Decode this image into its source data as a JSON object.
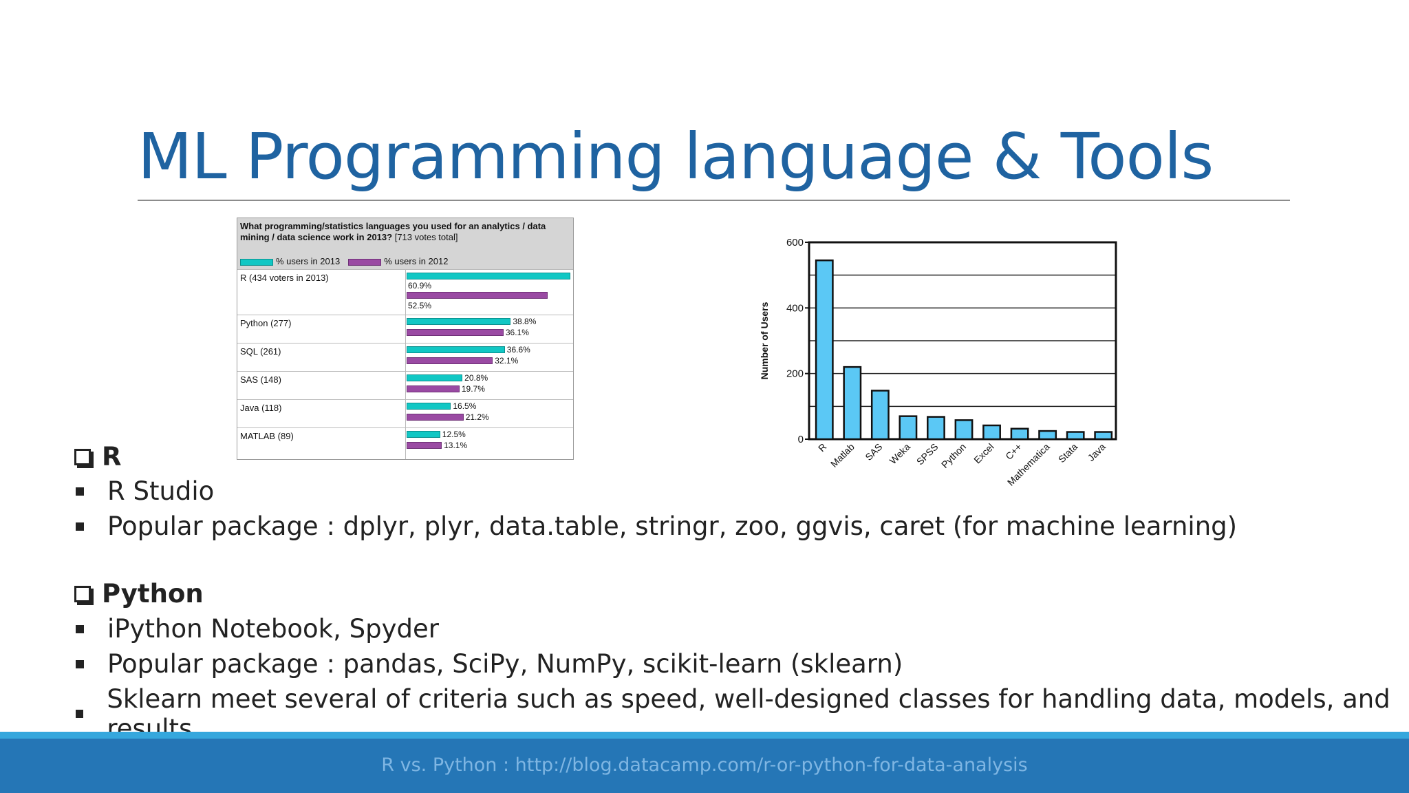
{
  "title": "ML Programming language & Tools",
  "table_chart": {
    "question": "What programming/statistics languages you used for an analytics / data mining / data science work in 2013?",
    "votes_note": "[713 votes total]",
    "legend_2013": "% users in 2013",
    "legend_2012": "% users in 2012",
    "colors": {
      "y2013": "#11c7c4",
      "y2012": "#9a4aa3"
    },
    "rows": [
      {
        "label": "R (434 voters in 2013)",
        "v2013": 60.9,
        "v2012": 52.5,
        "t2013": "60.9%",
        "t2012": "52.5%"
      },
      {
        "label": "Python (277)",
        "v2013": 38.8,
        "v2012": 36.1,
        "t2013": "38.8%",
        "t2012": "36.1%"
      },
      {
        "label": "SQL (261)",
        "v2013": 36.6,
        "v2012": 32.1,
        "t2013": "36.6%",
        "t2012": "32.1%"
      },
      {
        "label": "SAS (148)",
        "v2013": 20.8,
        "v2012": 19.7,
        "t2013": "20.8%",
        "t2012": "19.7%"
      },
      {
        "label": "Java (118)",
        "v2013": 16.5,
        "v2012": 21.2,
        "t2013": "16.5%",
        "t2012": "21.2%"
      },
      {
        "label": "MATLAB (89)",
        "v2013": 12.5,
        "v2012": 13.1,
        "t2013": "12.5%",
        "t2012": "13.1%"
      }
    ]
  },
  "chart_data": {
    "type": "bar",
    "categories": [
      "R",
      "Matlab",
      "SAS",
      "Weka",
      "SPSS",
      "Python",
      "Excel",
      "C++",
      "Mathematica",
      "Stata",
      "Java"
    ],
    "values": [
      545,
      220,
      148,
      70,
      68,
      58,
      42,
      32,
      25,
      22,
      22
    ],
    "xlabel": "",
    "ylabel": "Number of Users",
    "ylim": [
      0,
      600
    ],
    "yticks": [
      0,
      200,
      400,
      600
    ],
    "grid": true,
    "bar_color": "#5bc8f5"
  },
  "sections": {
    "r": {
      "heading": "R",
      "bullets": [
        "R Studio",
        "Popular package : dplyr, plyr, data.table, stringr, zoo, ggvis, caret (for machine learning)"
      ]
    },
    "python": {
      "heading": "Python",
      "bullets": [
        "iPython Notebook, Spyder",
        "Popular package : pandas, SciPy, NumPy, scikit-learn (sklearn)",
        "Sklearn meet several of criteria such as speed, well-designed classes for handling data, models, and results"
      ]
    }
  },
  "footer": {
    "text": "R vs. Python :  http://blog.datacamp.com/r-or-python-for-data-analysis"
  }
}
